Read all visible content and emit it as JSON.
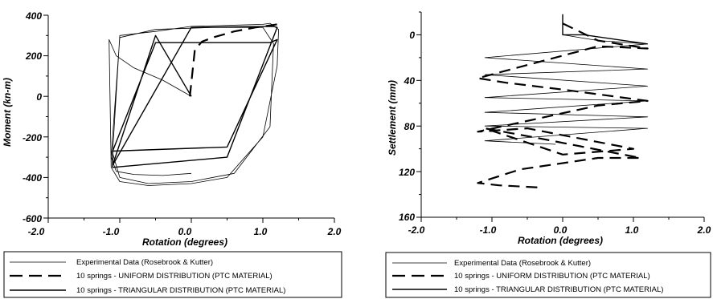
{
  "chart_data": [
    {
      "type": "line",
      "xlabel": "Rotation (degrees)",
      "ylabel": "Moment (kn-m)",
      "xlim": [
        -2.0,
        2.0
      ],
      "ylim": [
        -600,
        400
      ],
      "xticks": [
        "-2.0",
        "-1.0",
        "0.0",
        "1.0",
        "2.0"
      ],
      "yticks": [
        "400",
        "200",
        "0",
        "-200",
        "-400",
        "-600"
      ],
      "legend": [
        "Experimental Data (Rosebrook & Kutter)",
        "10 springs - UNIFORM DISTRIBUTION (PTC MATERIAL)",
        "10 springs - TRIANGULAR DISTRIBUTION (PTC MATERIAL)"
      ],
      "series": [
        {
          "name": "Experimental Data (Rosebrook & Kutter)",
          "style": "thin",
          "x": [
            0.0,
            -0.1,
            -0.4,
            -0.8,
            -1.05,
            -1.15,
            -1.12,
            -1.0,
            -0.6,
            0.0,
            0.5,
            1.0,
            1.2,
            1.22,
            1.1,
            1.0,
            0.5,
            0.0,
            -0.5,
            -1.0,
            -1.1,
            -1.0,
            -0.6,
            0.0,
            0.6,
            1.1,
            1.15,
            1.0,
            0.3,
            -0.5,
            -1.0,
            -1.12,
            -1.05,
            -0.8,
            -0.4,
            0.0
          ],
          "y": [
            0,
            20,
            80,
            140,
            200,
            280,
            -350,
            -420,
            -440,
            -430,
            -400,
            -200,
            150,
            330,
            360,
            355,
            350,
            345,
            320,
            300,
            -280,
            -400,
            -430,
            -420,
            -380,
            -150,
            260,
            340,
            340,
            330,
            290,
            -300,
            -370,
            -385,
            -390,
            -380
          ]
        },
        {
          "name": "10 springs - UNIFORM DISTRIBUTION (PTC MATERIAL)",
          "style": "dashed",
          "x": [
            -0.02,
            0.05,
            0.15,
            0.3,
            0.6,
            0.9,
            1.1,
            1.2
          ],
          "y": [
            0,
            230,
            270,
            290,
            320,
            340,
            350,
            355
          ]
        },
        {
          "name": "10 springs - TRIANGULAR DISTRIBUTION (PTC MATERIAL)",
          "style": "solid",
          "x": [
            0.0,
            -0.5,
            -1.1,
            -1.1,
            0.5,
            1.2,
            1.15,
            0.0,
            -1.1,
            -1.1,
            0.5,
            1.2,
            1.1,
            -0.5,
            -1.1
          ],
          "y": [
            0,
            300,
            -340,
            -350,
            -300,
            340,
            345,
            340,
            -340,
            -270,
            -250,
            280,
            265,
            265,
            -270
          ]
        }
      ]
    },
    {
      "type": "line",
      "xlabel": "Rotation (degrees)",
      "ylabel": "Settlement (mm)",
      "xlim": [
        -2.0,
        2.0
      ],
      "ylim": [
        160,
        -20
      ],
      "xticks": [
        "-2.0",
        "-1.0",
        "0.0",
        "1.0",
        "2.0"
      ],
      "yticks": [
        "0",
        "40",
        "80",
        "120",
        "160"
      ],
      "legend": [
        "Experimental Data (Rosebrook & Kutter)",
        "10 springs - UNIFORM DISTRIBUTION (PTC MATERIAL)",
        "10 springs - TRIANGULAR DISTRIBUTION (PTC MATERIAL)"
      ],
      "series": [
        {
          "name": "Experimental Data (Rosebrook & Kutter)",
          "style": "thin",
          "x": [
            0.0,
            0.5,
            1.2,
            -1.1,
            1.2,
            -1.1,
            1.2,
            -1.1,
            1.2,
            -1.1,
            1.2,
            -1.1,
            1.2,
            -1.1,
            -0.1
          ],
          "y": [
            0,
            5,
            8,
            20,
            30,
            35,
            45,
            55,
            58,
            68,
            72,
            80,
            82,
            93,
            96
          ]
        },
        {
          "name": "10 springs - UNIFORM DISTRIBUTION (PTC MATERIAL)",
          "style": "dashed",
          "x": [
            0.0,
            0.5,
            1.2,
            0.5,
            -1.2,
            -0.8,
            0.0,
            1.2,
            0.5,
            -1.2,
            -0.5,
            1.0,
            0.0,
            -1.1,
            -0.4,
            1.1,
            0.5,
            -0.6,
            -1.2,
            -0.9,
            -0.3
          ],
          "y": [
            -10,
            5,
            12,
            10,
            38,
            42,
            48,
            58,
            62,
            85,
            82,
            100,
            105,
            82,
            90,
            108,
            108,
            118,
            130,
            132,
            134
          ]
        },
        {
          "name": "10 springs - TRIANGULAR DISTRIBUTION (PTC MATERIAL)",
          "style": "solid",
          "x": [
            0.0,
            0.0,
            0.3,
            1.2
          ],
          "y": [
            -18,
            0,
            0,
            8
          ]
        }
      ]
    }
  ]
}
